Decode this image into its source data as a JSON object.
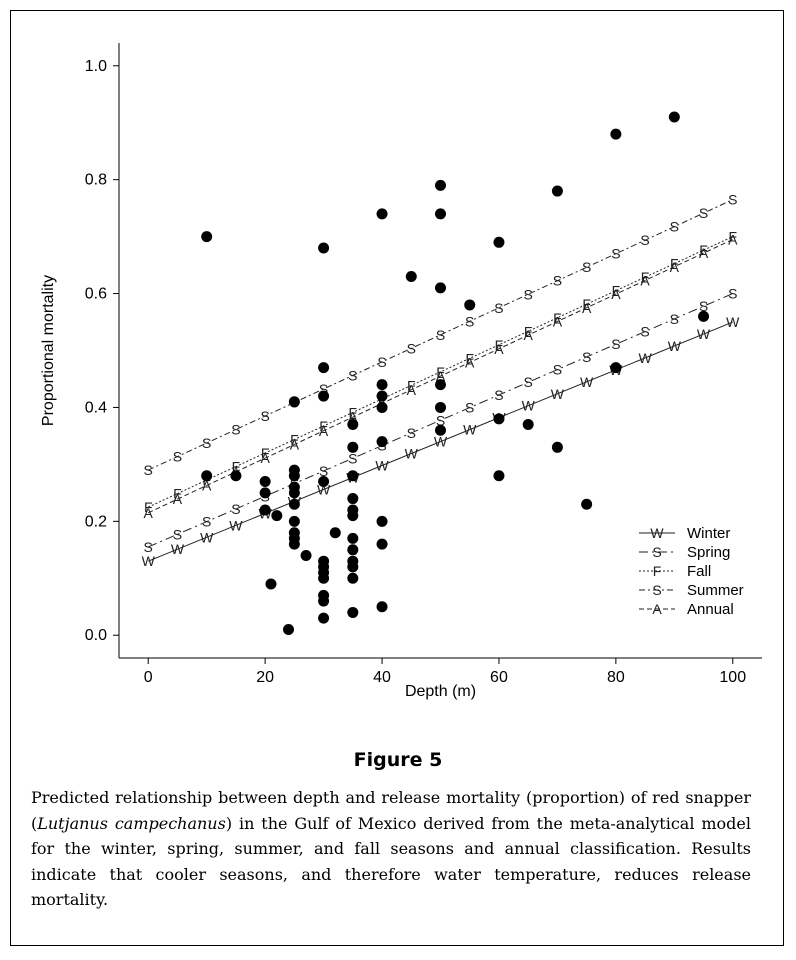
{
  "figure": {
    "title": "Figure 5",
    "caption": {
      "before": "Predicted relationship between depth and release mortality (proportion) of red snapper (",
      "species": "Lutjanus campechanus",
      "after": ") in the Gulf of Mexico derived from the meta-analytical model for the winter, spring, summer, and fall seasons and annual classification. Results indicate that cooler seasons, and therefore water temperature, reduces release mortality."
    }
  },
  "chart_data": {
    "type": "scatter",
    "xlabel": "Depth (m)",
    "ylabel": "Proportional mortality",
    "xlim": [
      -5,
      105
    ],
    "ylim": [
      -0.04,
      1.04
    ],
    "xticks": [
      0,
      20,
      40,
      60,
      80,
      100
    ],
    "yticks": [
      0.0,
      0.2,
      0.4,
      0.6,
      0.8,
      1.0
    ],
    "ytick_labels": [
      "0.0",
      "0.2",
      "0.4",
      "0.6",
      "0.8",
      "1.0"
    ],
    "grid": false,
    "legend_position": "bottom-right",
    "observed_points": [
      [
        10,
        0.7
      ],
      [
        10,
        0.28
      ],
      [
        15,
        0.28
      ],
      [
        20,
        0.27
      ],
      [
        20,
        0.25
      ],
      [
        20,
        0.22
      ],
      [
        21,
        0.09
      ],
      [
        22,
        0.21
      ],
      [
        24,
        0.01
      ],
      [
        25,
        0.41
      ],
      [
        25,
        0.29
      ],
      [
        25,
        0.28
      ],
      [
        25,
        0.26
      ],
      [
        25,
        0.25
      ],
      [
        25,
        0.23
      ],
      [
        25,
        0.2
      ],
      [
        25,
        0.18
      ],
      [
        25,
        0.17
      ],
      [
        25,
        0.16
      ],
      [
        27,
        0.14
      ],
      [
        30,
        0.68
      ],
      [
        30,
        0.47
      ],
      [
        30,
        0.42
      ],
      [
        30,
        0.27
      ],
      [
        30,
        0.13
      ],
      [
        30,
        0.12
      ],
      [
        30,
        0.11
      ],
      [
        30,
        0.1
      ],
      [
        30,
        0.07
      ],
      [
        30,
        0.06
      ],
      [
        30,
        0.03
      ],
      [
        32,
        0.18
      ],
      [
        35,
        0.37
      ],
      [
        35,
        0.33
      ],
      [
        35,
        0.28
      ],
      [
        35,
        0.24
      ],
      [
        35,
        0.22
      ],
      [
        35,
        0.21
      ],
      [
        35,
        0.17
      ],
      [
        35,
        0.15
      ],
      [
        35,
        0.13
      ],
      [
        35,
        0.12
      ],
      [
        35,
        0.1
      ],
      [
        35,
        0.04
      ],
      [
        40,
        0.74
      ],
      [
        40,
        0.44
      ],
      [
        40,
        0.42
      ],
      [
        40,
        0.4
      ],
      [
        40,
        0.34
      ],
      [
        40,
        0.2
      ],
      [
        40,
        0.16
      ],
      [
        40,
        0.05
      ],
      [
        45,
        0.63
      ],
      [
        50,
        0.79
      ],
      [
        50,
        0.74
      ],
      [
        50,
        0.61
      ],
      [
        50,
        0.44
      ],
      [
        50,
        0.4
      ],
      [
        50,
        0.36
      ],
      [
        55,
        0.58
      ],
      [
        60,
        0.69
      ],
      [
        60,
        0.38
      ],
      [
        60,
        0.28
      ],
      [
        65,
        0.37
      ],
      [
        70,
        0.78
      ],
      [
        70,
        0.33
      ],
      [
        75,
        0.23
      ],
      [
        80,
        0.88
      ],
      [
        80,
        0.47
      ],
      [
        90,
        0.91
      ],
      [
        95,
        0.56
      ]
    ],
    "series": [
      {
        "name": "Winter",
        "marker": "W",
        "dash": "none",
        "x": [
          0,
          100
        ],
        "y": [
          0.13,
          0.55
        ]
      },
      {
        "name": "Spring",
        "marker": "S",
        "dash": "9 4 2 4",
        "x": [
          0,
          100
        ],
        "y": [
          0.155,
          0.6
        ]
      },
      {
        "name": "Fall",
        "marker": "F",
        "dash": "2 2",
        "x": [
          0,
          100
        ],
        "y": [
          0.225,
          0.7
        ]
      },
      {
        "name": "Summer",
        "marker": "S",
        "dash": "6 3 2 3",
        "x": [
          0,
          100
        ],
        "y": [
          0.29,
          0.765
        ]
      },
      {
        "name": "Annual",
        "marker": "A",
        "dash": "5 3",
        "x": [
          0,
          100
        ],
        "y": [
          0.215,
          0.695
        ]
      }
    ],
    "colors": {
      "line": "#222222",
      "point": "#000000"
    }
  }
}
